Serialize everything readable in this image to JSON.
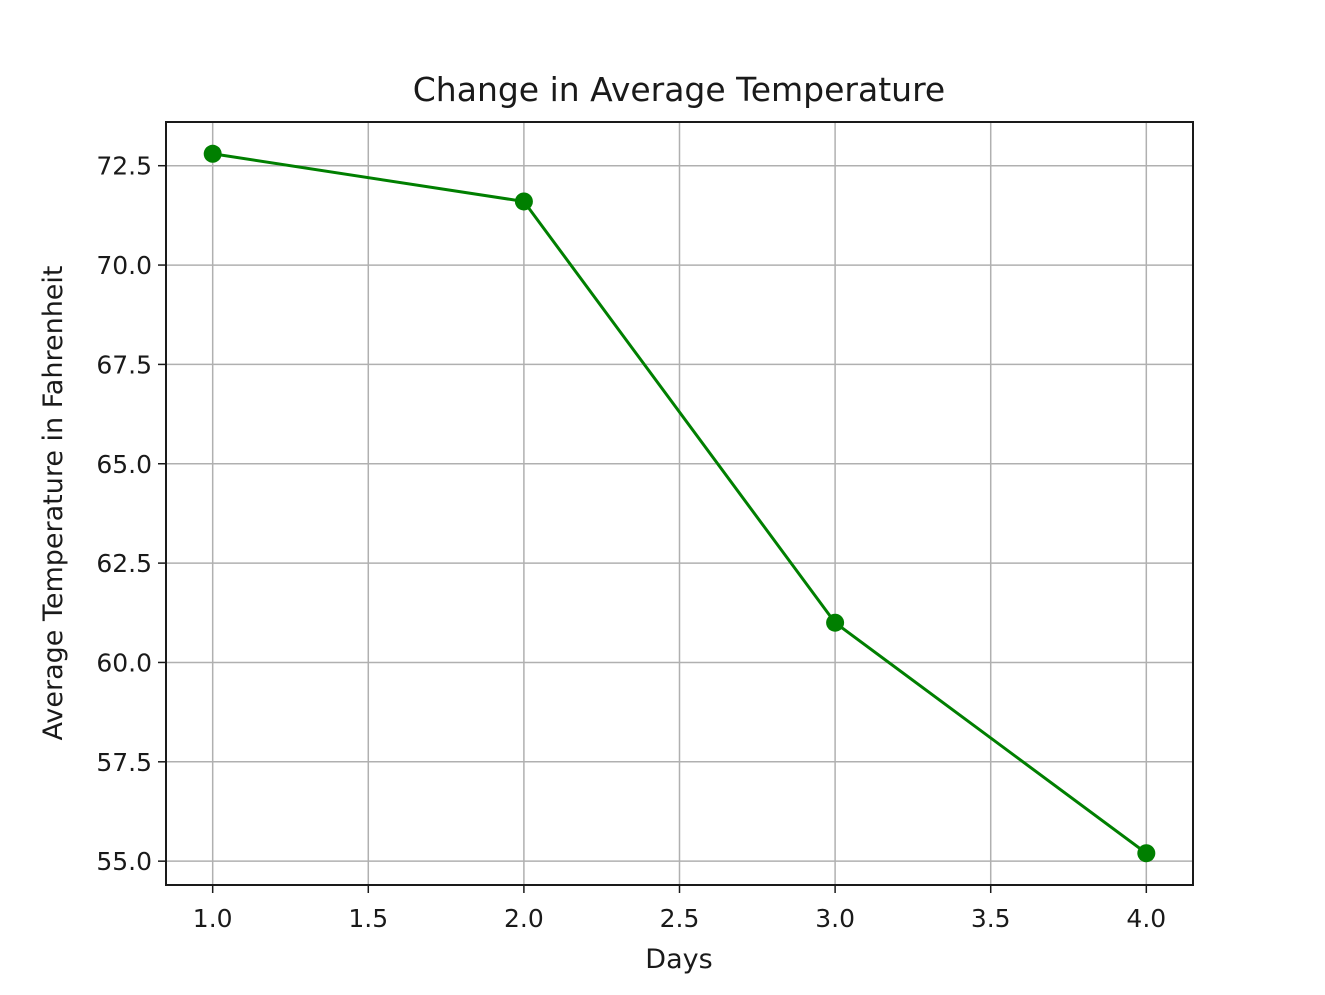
{
  "chart_data": {
    "type": "line",
    "title": "Change in Average Temperature",
    "xlabel": "Days",
    "ylabel": "Average Temperature in Fahrenheit",
    "x": [
      1.0,
      2.0,
      3.0,
      4.0
    ],
    "series": [
      {
        "values": [
          72.8,
          71.6,
          61.0,
          55.2
        ]
      }
    ],
    "xlim": [
      0.85,
      4.15
    ],
    "ylim": [
      54.4,
      73.6
    ],
    "xticks": [
      "1.0",
      "1.5",
      "2.0",
      "2.5",
      "3.0",
      "3.5",
      "4.0"
    ],
    "yticks": [
      "55.0",
      "57.5",
      "60.0",
      "62.5",
      "65.0",
      "67.5",
      "70.0",
      "72.5"
    ],
    "grid": true,
    "markers": true,
    "line_color": "#007f00",
    "grid_color": "#b0b0b0"
  }
}
